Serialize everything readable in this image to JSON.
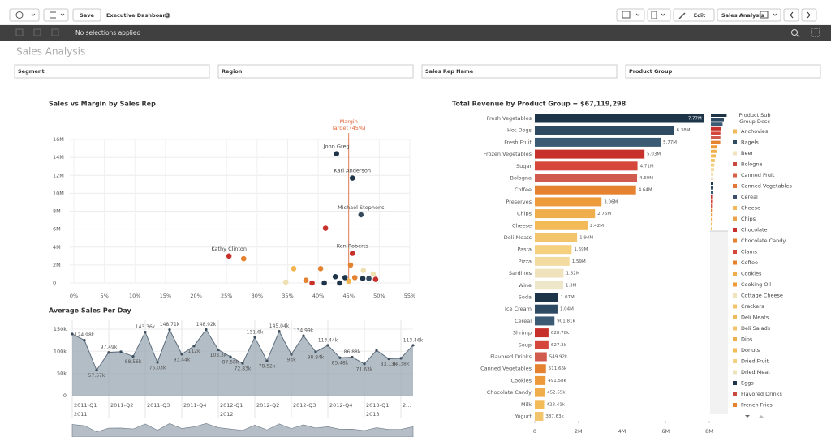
{
  "toolbar": {
    "save": "Save",
    "app_title": "Executive Dashboard",
    "edit": "Edit",
    "sheet_name": "Sales Analysis"
  },
  "selections": "No selections applied",
  "sheet_title": "Sales Analysis",
  "filters": [
    "Segment",
    "Region",
    "Sales Rep Name",
    "Product Group"
  ],
  "chart_data": [
    {
      "type": "scatter",
      "title": "Sales vs Margin by Sales Rep",
      "x": [
        43.0,
        45.6,
        47.0,
        45.6,
        25.4,
        27.8,
        41.2,
        45.3,
        36.0,
        40.4,
        47.4,
        49.0,
        42.8,
        44.4,
        46.0,
        47.3,
        48.3,
        49.4,
        34.7,
        39.0,
        41.0,
        43.5,
        45.0,
        38.0
      ],
      "values": [
        14400000,
        11700000,
        7600000,
        3300000,
        3000000,
        2700000,
        6100000,
        2000000,
        1600000,
        1600000,
        1400000,
        1000000,
        700000,
        600000,
        600000,
        500000,
        500000,
        400000,
        100000,
        0,
        0,
        0,
        200000,
        300000
      ],
      "colors": [
        "#1d3449",
        "#1d3449",
        "#34495e",
        "#c7312b",
        "#c7312b",
        "#e5822f",
        "#c7312b",
        "#e5822f",
        "#f3b34f",
        "#e5822f",
        "#efe0b0",
        "#efe0b0",
        "#1d3449",
        "#1d3449",
        "#e5822f",
        "#1d3449",
        "#34495e",
        "#c7312b",
        "#efe0b0",
        "#c7312b",
        "#1d3449",
        "#1d3449",
        "#f3b34f",
        "#e5822f"
      ],
      "point_labels": [
        "John Greg",
        "Karl Anderson",
        "Michael Stephens",
        "Ken Roberts",
        "Kathy Clinton",
        null,
        null,
        null,
        null,
        null,
        null,
        null,
        null,
        null,
        null,
        null,
        null,
        null,
        null,
        null,
        null,
        null,
        null,
        null
      ],
      "xlim": [
        0,
        55
      ],
      "xticks": [
        {
          "value": 0,
          "label": "0%"
        },
        {
          "value": 5,
          "label": "5%"
        },
        {
          "value": 10,
          "label": "10%"
        },
        {
          "value": 15,
          "label": "15%"
        },
        {
          "value": 20,
          "label": "20%"
        },
        {
          "value": 25,
          "label": "25%"
        },
        {
          "value": 30,
          "label": "30%"
        },
        {
          "value": 35,
          "label": "35%"
        },
        {
          "value": 40,
          "label": "40%"
        },
        {
          "value": 45,
          "label": "45%"
        },
        {
          "value": 50,
          "label": "50%"
        },
        {
          "value": 55,
          "label": "55%"
        }
      ],
      "ylim": [
        0,
        16000000
      ],
      "yticks": [
        0,
        {
          "value": 2000000,
          "label": "2M"
        },
        {
          "value": 4000000,
          "label": "4M"
        },
        {
          "value": 6000000,
          "label": "6M"
        },
        {
          "value": 8000000,
          "label": "8M"
        },
        {
          "value": 10000000,
          "label": "10M"
        },
        {
          "value": 12000000,
          "label": "12M"
        },
        {
          "value": 14000000,
          "label": "14M"
        },
        {
          "value": 16000000,
          "label": "16M"
        }
      ],
      "grid": true,
      "reference_line": {
        "value": 45,
        "label": [
          "Margin",
          "Target (45%)"
        ],
        "color": "#e06030"
      }
    },
    {
      "type": "hbar",
      "title": "Total Revenue by Product Group = $67,119,298",
      "categories": [
        "Fresh Vegetables",
        "Hot Dogs",
        "Fresh Fruit",
        "Frozen Vegetables",
        "Sugar",
        "Bologna",
        "Coffee",
        "Preserves",
        "Chips",
        "Cheese",
        "Deli Meats",
        "Pasta",
        "Pizza",
        "Sardines",
        "Wine",
        "Soda",
        "Ice Cream",
        "Cereal",
        "Shrimp",
        "Soup",
        "Flavored Drinks",
        "Canned Vegetables",
        "Cookies",
        "Chocolate Candy",
        "Milk",
        "Yogurt"
      ],
      "values": [
        7770000,
        6380000,
        5770000,
        5030000,
        4710000,
        4690000,
        4640000,
        3060000,
        2760000,
        2420000,
        1940000,
        1690000,
        1590000,
        1320000,
        1300000,
        1070000,
        1040000,
        901810,
        628780,
        627300,
        549920,
        511660,
        491580,
        452550,
        428410,
        387630
      ],
      "value_labels": [
        "7.77M",
        "6.38M",
        "5.77M",
        "5.03M",
        "4.71M",
        "4.69M",
        "4.64M",
        "3.06M",
        "2.76M",
        "2.42M",
        "1.94M",
        "1.69M",
        "1.59M",
        "1.32M",
        "1.3M",
        "1.07M",
        "1.04M",
        "901.81k",
        "628.78k",
        "627.3k",
        "549.92k",
        "511.66k",
        "491.58k",
        "452.55k",
        "428.41k",
        "387.63k"
      ],
      "colors": [
        "#1d3449",
        "#2f4a63",
        "#3b5b74",
        "#c7312b",
        "#d5473a",
        "#cf5a4d",
        "#e5822f",
        "#ec9a3a",
        "#f0ad4b",
        "#f3bb58",
        "#f2c46c",
        "#f5d07f",
        "#f3dba0",
        "#efe3bd",
        "#eee6c9",
        "#1d3449",
        "#2f4a63",
        "#3b5b74",
        "#c7312b",
        "#d5473a",
        "#cf5a4d",
        "#e5822f",
        "#ec9a3a",
        "#f0ad4b",
        "#f3bb58",
        "#f2c46c"
      ],
      "xlim": [
        0,
        8000000
      ],
      "xticks": [
        0,
        {
          "value": 2000000,
          "label": "2M"
        },
        {
          "value": 4000000,
          "label": "4M"
        },
        {
          "value": 6000000,
          "label": "6M"
        },
        {
          "value": 8000000,
          "label": "8M"
        }
      ],
      "legend": {
        "title": [
          "Product Sub",
          "Group Desc"
        ],
        "items": [
          {
            "name": "Anchovies",
            "color": "#f0b95a"
          },
          {
            "name": "Bagels",
            "color": "#2f4a63"
          },
          {
            "name": "Beer",
            "color": "#f0e3c0"
          },
          {
            "name": "Bologna",
            "color": "#c94a3e"
          },
          {
            "name": "Canned Fruit",
            "color": "#d86046"
          },
          {
            "name": "Canned Vegetables",
            "color": "#e0783a"
          },
          {
            "name": "Cereal",
            "color": "#3a5068"
          },
          {
            "name": "Cheese",
            "color": "#f0b95a"
          },
          {
            "name": "Chips",
            "color": "#e9a24a"
          },
          {
            "name": "Chocolate",
            "color": "#c7312b"
          },
          {
            "name": "Chocolate Candy",
            "color": "#e5822f"
          },
          {
            "name": "Clams",
            "color": "#d5473a"
          },
          {
            "name": "Coffee",
            "color": "#e5822f"
          },
          {
            "name": "Cookies",
            "color": "#f0ad4b"
          },
          {
            "name": "Cooking Oil",
            "color": "#ec9a3a"
          },
          {
            "name": "Cottage Cheese",
            "color": "#efe3bd"
          },
          {
            "name": "Crackers",
            "color": "#f3c46c"
          },
          {
            "name": "Deli Meats",
            "color": "#f0b95a"
          },
          {
            "name": "Deli Salads",
            "color": "#f3c46c"
          },
          {
            "name": "Dips",
            "color": "#f0ad4b"
          },
          {
            "name": "Donuts",
            "color": "#f3bb58"
          },
          {
            "name": "Dried Fruit",
            "color": "#f5d07f"
          },
          {
            "name": "Dried Meat",
            "color": "#efe3bd"
          },
          {
            "name": "Eggs",
            "color": "#1d3449"
          },
          {
            "name": "Flavored Drinks",
            "color": "#c94a3e"
          },
          {
            "name": "French Fries",
            "color": "#e5822f"
          }
        ]
      }
    },
    {
      "type": "area",
      "title": "Average Sales Per Day",
      "categories": [
        "2011-Q1",
        null,
        null,
        "2011-Q2",
        null,
        null,
        "2011-Q3",
        null,
        null,
        "2011-Q4",
        null,
        null,
        "2012-Q1",
        null,
        null,
        "2012-Q2",
        null,
        null,
        "2012-Q3",
        null,
        null,
        "2012-Q4",
        null,
        null,
        "2013-Q1",
        null,
        null,
        "2...",
        null
      ],
      "years": [
        "2011",
        null,
        null,
        null,
        null,
        null,
        null,
        null,
        null,
        null,
        null,
        null,
        "2012",
        null,
        null,
        null,
        null,
        null,
        null,
        null,
        null,
        null,
        null,
        null,
        "2013",
        null,
        null,
        null,
        null
      ],
      "values": [
        139000,
        124980,
        57570,
        97490,
        99000,
        88560,
        143360,
        75030,
        148710,
        93440,
        112000,
        148920,
        103300,
        87580,
        72830,
        131600,
        78520,
        145040,
        93000,
        134990,
        98840,
        113440,
        85480,
        86880,
        71630,
        102000,
        83130,
        84380,
        113460
      ],
      "value_labels": [
        null,
        "124.98k",
        "57.57k",
        "97.49k",
        null,
        "88.56k",
        "143.36k",
        "75.03k",
        "148.71k",
        "93.44k",
        "112k",
        "148.92k",
        "103.3k",
        "87.58k",
        "72.83k",
        "131.6k",
        "78.52k",
        "145.04k",
        "93k",
        "134.99k",
        "98.84k",
        "113.44k",
        "85.48k",
        "86.88k",
        "71.63k",
        null,
        "83.13k",
        "84.38k",
        "113.46k"
      ],
      "color": "#9aa7b2",
      "line_color": "#5d6d7e",
      "ylim": [
        0,
        170000
      ],
      "yticks": [
        0,
        {
          "value": 50000,
          "label": "50k"
        },
        {
          "value": 100000,
          "label": "100k"
        },
        {
          "value": 150000,
          "label": "150k"
        }
      ],
      "grid": true
    }
  ]
}
